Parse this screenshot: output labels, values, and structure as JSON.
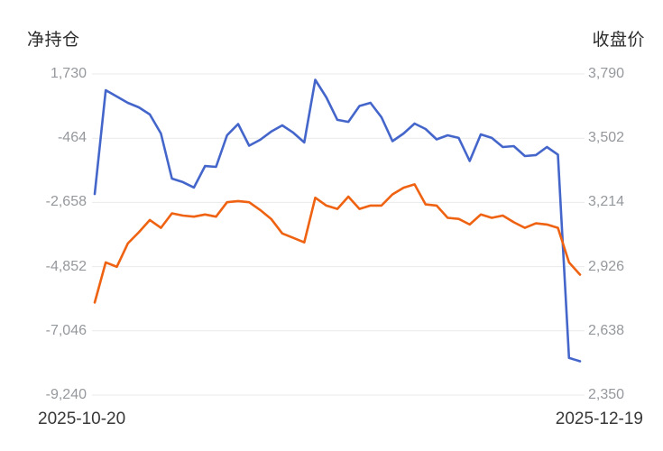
{
  "colors": {
    "net_position_line": "#4466cb",
    "close_price_line": "#ee6211",
    "grid": "#e9e9e9",
    "tick_text": "#95989c",
    "title_text": "#2d2d2d"
  },
  "x_axis": {
    "start_label": "2025-10-20",
    "end_label": "2025-12-19"
  },
  "chart_data": {
    "type": "line",
    "title": "",
    "legend": false,
    "grid": true,
    "x_count": 45,
    "x_range_labels": [
      "2025-10-20",
      "2025-12-19"
    ],
    "left_axis": {
      "title": "净持仓",
      "ticks": [
        "1,730",
        "-464",
        "-2,658",
        "-4,852",
        "-7,046",
        "-9,240"
      ],
      "min": -9240,
      "max": 1730
    },
    "right_axis": {
      "title": "收盘价",
      "ticks": [
        "3,790",
        "3,502",
        "3,214",
        "2,926",
        "2,638",
        "2,350"
      ],
      "min": 2350,
      "max": 3790
    },
    "series": [
      {
        "name": "净持仓",
        "axis": "left",
        "color": "#4466cb",
        "values": [
          -2370,
          1175,
          960,
          745,
          590,
          345,
          -305,
          -1845,
          -1965,
          -2150,
          -1415,
          -1445,
          -365,
          20,
          -720,
          -520,
          -240,
          -25,
          -275,
          -610,
          1530,
          930,
          160,
          95,
          635,
          745,
          250,
          -565,
          -305,
          35,
          -150,
          -505,
          -365,
          -455,
          -1245,
          -335,
          -455,
          -765,
          -735,
          -1075,
          -1040,
          -765,
          -1025,
          -7970,
          -8085
        ]
      },
      {
        "name": "收盘价",
        "axis": "right",
        "color": "#ee6211",
        "values": [
          2765,
          2945,
          2925,
          3030,
          3080,
          3135,
          3100,
          3165,
          3155,
          3150,
          3160,
          3150,
          3215,
          3220,
          3215,
          3180,
          3140,
          3075,
          3055,
          3035,
          3235,
          3200,
          3185,
          3240,
          3185,
          3200,
          3200,
          3250,
          3280,
          3295,
          3205,
          3200,
          3145,
          3140,
          3115,
          3160,
          3145,
          3155,
          3125,
          3100,
          3120,
          3115,
          3100,
          2945,
          2890
        ]
      }
    ]
  }
}
